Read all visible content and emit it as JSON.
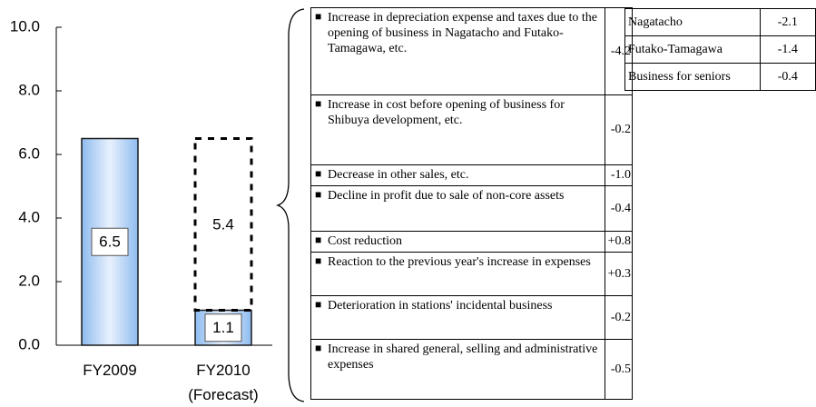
{
  "chart_data": {
    "type": "stacked-bar",
    "categories": [
      "FY2009",
      "FY2010\n(Forecast)"
    ],
    "series": [
      {
        "values": [
          6.5,
          1.1
        ],
        "color": "#b9d5f7",
        "style": "solid"
      },
      {
        "values": [
          null,
          5.4
        ],
        "color": "#000000",
        "style": "dashed"
      }
    ],
    "ylim": [
      0,
      10
    ],
    "yticks": [
      {
        "value": 0,
        "label": "0.0"
      },
      {
        "value": 2,
        "label": "2.0"
      },
      {
        "value": 4,
        "label": "4.0"
      },
      {
        "value": 6,
        "label": "6.0"
      },
      {
        "value": 8,
        "label": "8.0"
      },
      {
        "value": 10,
        "label": "10.0"
      }
    ],
    "grid": false
  },
  "factors_table": {
    "rows": [
      [
        "Increase in depreciation expense and taxes due to the opening of business in Nagatacho and Futako-Tamagawa, etc.",
        "-4.2"
      ],
      [
        "Increase in cost before opening of business for Shibuya development, etc.",
        "-0.2"
      ],
      [
        "Decrease in other sales, etc.",
        "-1.0"
      ],
      [
        "Decline in profit due to sale of non-core assets",
        "-0.4"
      ],
      [
        "Cost reduction",
        "+0.8"
      ],
      [
        "Reaction to the previous year's increase in expenses",
        "+0.3"
      ],
      [
        "Deterioration in stations' incidental business",
        "-0.2"
      ],
      [
        "Increase in shared general, selling and administrative expenses",
        "-0.5"
      ]
    ]
  },
  "breakdown_table": {
    "rows": [
      [
        "Nagatacho",
        "-2.1"
      ],
      [
        "Futako-Tamagawa",
        "-1.4"
      ],
      [
        "Business for seniors",
        "-0.4"
      ]
    ]
  }
}
